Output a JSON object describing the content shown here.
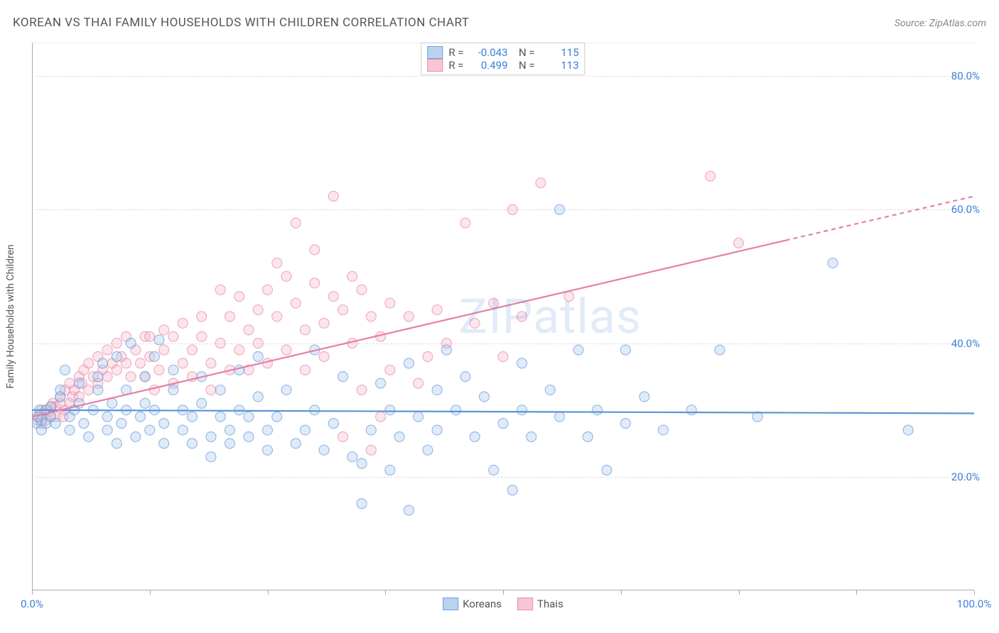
{
  "title": "KOREAN VS THAI FAMILY HOUSEHOLDS WITH CHILDREN CORRELATION CHART",
  "source_label": "Source: ",
  "source_name": "ZipAtlas.com",
  "watermark": "ZIPatlas",
  "chart": {
    "type": "scatter",
    "y_axis_title": "Family Households with Children",
    "xlim": [
      0,
      100
    ],
    "ylim": [
      3,
      85
    ],
    "x_ticks": [
      0,
      12.5,
      25,
      37.5,
      50,
      62.5,
      75,
      87.5,
      100
    ],
    "x_tick_labels": {
      "0": "0.0%",
      "100": "100.0%"
    },
    "y_gridlines": [
      20,
      40,
      60,
      80
    ],
    "y_tick_labels": {
      "20": "20.0%",
      "40": "40.0%",
      "60": "60.0%",
      "80": "80.0%"
    },
    "background_color": "#ffffff",
    "grid_color": "#dddddd",
    "axis_color": "#aaaaaa",
    "label_color": "#3d7fd9",
    "point_radius": 7
  },
  "series": [
    {
      "name": "Koreans",
      "fill_color": "#a8c7ec",
      "stroke_color": "#5a95d6",
      "legend_fill": "#b9d3f0",
      "legend_stroke": "#6fa3db",
      "r_value": "-0.043",
      "n_value": "115",
      "trend": {
        "x1": 0,
        "y1": 30,
        "x2": 100,
        "y2": 29.5,
        "dashed_from": null
      },
      "points": [
        [
          0.5,
          28
        ],
        [
          0.6,
          29
        ],
        [
          0.8,
          30
        ],
        [
          1,
          28.5
        ],
        [
          1,
          27
        ],
        [
          1.5,
          30
        ],
        [
          1.5,
          28
        ],
        [
          2,
          29
        ],
        [
          2,
          30.5
        ],
        [
          2.5,
          28
        ],
        [
          3,
          32
        ],
        [
          3,
          33
        ],
        [
          3.5,
          36
        ],
        [
          4,
          29
        ],
        [
          4,
          27
        ],
        [
          4.5,
          30
        ],
        [
          5,
          34
        ],
        [
          5,
          31
        ],
        [
          5.5,
          28
        ],
        [
          6,
          26
        ],
        [
          6.5,
          30
        ],
        [
          7,
          33
        ],
        [
          7,
          35
        ],
        [
          7.5,
          37
        ],
        [
          8,
          27
        ],
        [
          8,
          29
        ],
        [
          8.5,
          31
        ],
        [
          9,
          38
        ],
        [
          9,
          25
        ],
        [
          9.5,
          28
        ],
        [
          10,
          30
        ],
        [
          10,
          33
        ],
        [
          10.5,
          40
        ],
        [
          11,
          26
        ],
        [
          11.5,
          29
        ],
        [
          12,
          31
        ],
        [
          12,
          35
        ],
        [
          12.5,
          27
        ],
        [
          13,
          30
        ],
        [
          13,
          38
        ],
        [
          13.5,
          40.5
        ],
        [
          14,
          25
        ],
        [
          14,
          28
        ],
        [
          15,
          33
        ],
        [
          15,
          36
        ],
        [
          16,
          30
        ],
        [
          16,
          27
        ],
        [
          17,
          25
        ],
        [
          17,
          29
        ],
        [
          18,
          31
        ],
        [
          18,
          35
        ],
        [
          19,
          26
        ],
        [
          19,
          23
        ],
        [
          20,
          29
        ],
        [
          20,
          33
        ],
        [
          21,
          25
        ],
        [
          21,
          27
        ],
        [
          22,
          30
        ],
        [
          22,
          36
        ],
        [
          23,
          26
        ],
        [
          23,
          29
        ],
        [
          24,
          32
        ],
        [
          24,
          38
        ],
        [
          25,
          27
        ],
        [
          25,
          24
        ],
        [
          26,
          29
        ],
        [
          27,
          33
        ],
        [
          28,
          25
        ],
        [
          29,
          27
        ],
        [
          30,
          39
        ],
        [
          30,
          30
        ],
        [
          31,
          24
        ],
        [
          32,
          28
        ],
        [
          33,
          35
        ],
        [
          34,
          23
        ],
        [
          35,
          16
        ],
        [
          35,
          22
        ],
        [
          36,
          27
        ],
        [
          37,
          34
        ],
        [
          38,
          30
        ],
        [
          38,
          21
        ],
        [
          39,
          26
        ],
        [
          40,
          37
        ],
        [
          40,
          15
        ],
        [
          41,
          29
        ],
        [
          42,
          24
        ],
        [
          43,
          33
        ],
        [
          43,
          27
        ],
        [
          44,
          39
        ],
        [
          45,
          30
        ],
        [
          46,
          35
        ],
        [
          47,
          26
        ],
        [
          48,
          32
        ],
        [
          49,
          21
        ],
        [
          50,
          28
        ],
        [
          51,
          18
        ],
        [
          52,
          30
        ],
        [
          52,
          37
        ],
        [
          53,
          26
        ],
        [
          55,
          33
        ],
        [
          56,
          29
        ],
        [
          56,
          60
        ],
        [
          58,
          39
        ],
        [
          59,
          26
        ],
        [
          60,
          30
        ],
        [
          61,
          21
        ],
        [
          63,
          28
        ],
        [
          63,
          39
        ],
        [
          65,
          32
        ],
        [
          67,
          27
        ],
        [
          70,
          30
        ],
        [
          73,
          39
        ],
        [
          77,
          29
        ],
        [
          85,
          52
        ],
        [
          93,
          27
        ]
      ]
    },
    {
      "name": "Thais",
      "fill_color": "#f4b8c9",
      "stroke_color": "#e77fa3",
      "legend_fill": "#f7c6d4",
      "legend_stroke": "#e88da8",
      "r_value": "0.499",
      "n_value": "113",
      "trend": {
        "x1": 0,
        "y1": 29,
        "x2": 100,
        "y2": 62,
        "dashed_from": 80
      },
      "points": [
        [
          0.5,
          28.5
        ],
        [
          0.7,
          29
        ],
        [
          1,
          30
        ],
        [
          1,
          28
        ],
        [
          1.3,
          29.5
        ],
        [
          1.5,
          30
        ],
        [
          1.5,
          28.5
        ],
        [
          2,
          30.5
        ],
        [
          2,
          29
        ],
        [
          2.2,
          31
        ],
        [
          2.5,
          29
        ],
        [
          2.5,
          30.5
        ],
        [
          3,
          31
        ],
        [
          3,
          32
        ],
        [
          3.3,
          29
        ],
        [
          3.5,
          33
        ],
        [
          3.5,
          30
        ],
        [
          4,
          34
        ],
        [
          4,
          31
        ],
        [
          4.3,
          32
        ],
        [
          4.5,
          33
        ],
        [
          5,
          35
        ],
        [
          5,
          32
        ],
        [
          5.3,
          34
        ],
        [
          5.5,
          36
        ],
        [
          6,
          33
        ],
        [
          6,
          37
        ],
        [
          6.5,
          35
        ],
        [
          7,
          38
        ],
        [
          7,
          34
        ],
        [
          7.5,
          36
        ],
        [
          8,
          39
        ],
        [
          8,
          35
        ],
        [
          8.5,
          37
        ],
        [
          9,
          40
        ],
        [
          9,
          36
        ],
        [
          9.5,
          38
        ],
        [
          10,
          41
        ],
        [
          10,
          37
        ],
        [
          10.5,
          35
        ],
        [
          11,
          39
        ],
        [
          11.5,
          37
        ],
        [
          12,
          41
        ],
        [
          12,
          35
        ],
        [
          12.5,
          38
        ],
        [
          13,
          33
        ],
        [
          12.5,
          41
        ],
        [
          13.5,
          36
        ],
        [
          14,
          39
        ],
        [
          14,
          42
        ],
        [
          15,
          34
        ],
        [
          15,
          41
        ],
        [
          16,
          37
        ],
        [
          16,
          43
        ],
        [
          17,
          39
        ],
        [
          17,
          35
        ],
        [
          18,
          41
        ],
        [
          18,
          44
        ],
        [
          19,
          37
        ],
        [
          19,
          33
        ],
        [
          20,
          40
        ],
        [
          20,
          48
        ],
        [
          21,
          36
        ],
        [
          21,
          44
        ],
        [
          22,
          39
        ],
        [
          22,
          47
        ],
        [
          23,
          42
        ],
        [
          23,
          36
        ],
        [
          24,
          45
        ],
        [
          24,
          40
        ],
        [
          25,
          48
        ],
        [
          25,
          37
        ],
        [
          26,
          52
        ],
        [
          26,
          44
        ],
        [
          27,
          39
        ],
        [
          27,
          50
        ],
        [
          28,
          46
        ],
        [
          28,
          58
        ],
        [
          29,
          42
        ],
        [
          29,
          36
        ],
        [
          30,
          49
        ],
        [
          30,
          54
        ],
        [
          31,
          43
        ],
        [
          31,
          38
        ],
        [
          32,
          47
        ],
        [
          32,
          62
        ],
        [
          33,
          45
        ],
        [
          33,
          26
        ],
        [
          34,
          50
        ],
        [
          34,
          40
        ],
        [
          35,
          33
        ],
        [
          35,
          48
        ],
        [
          36,
          44
        ],
        [
          36,
          24
        ],
        [
          37,
          29
        ],
        [
          37,
          41
        ],
        [
          38,
          46
        ],
        [
          38,
          36
        ],
        [
          40,
          44
        ],
        [
          41,
          34
        ],
        [
          42,
          38
        ],
        [
          43,
          45
        ],
        [
          44,
          40
        ],
        [
          46,
          58
        ],
        [
          47,
          43
        ],
        [
          49,
          46
        ],
        [
          50,
          38
        ],
        [
          51,
          60
        ],
        [
          52,
          44
        ],
        [
          54,
          64
        ],
        [
          57,
          47
        ],
        [
          72,
          65
        ],
        [
          75,
          55
        ]
      ]
    }
  ],
  "legend_bottom": [
    {
      "label": "Koreans",
      "fill": "#b9d3f0",
      "stroke": "#6fa3db"
    },
    {
      "label": "Thais",
      "fill": "#f7c6d4",
      "stroke": "#e88da8"
    }
  ]
}
